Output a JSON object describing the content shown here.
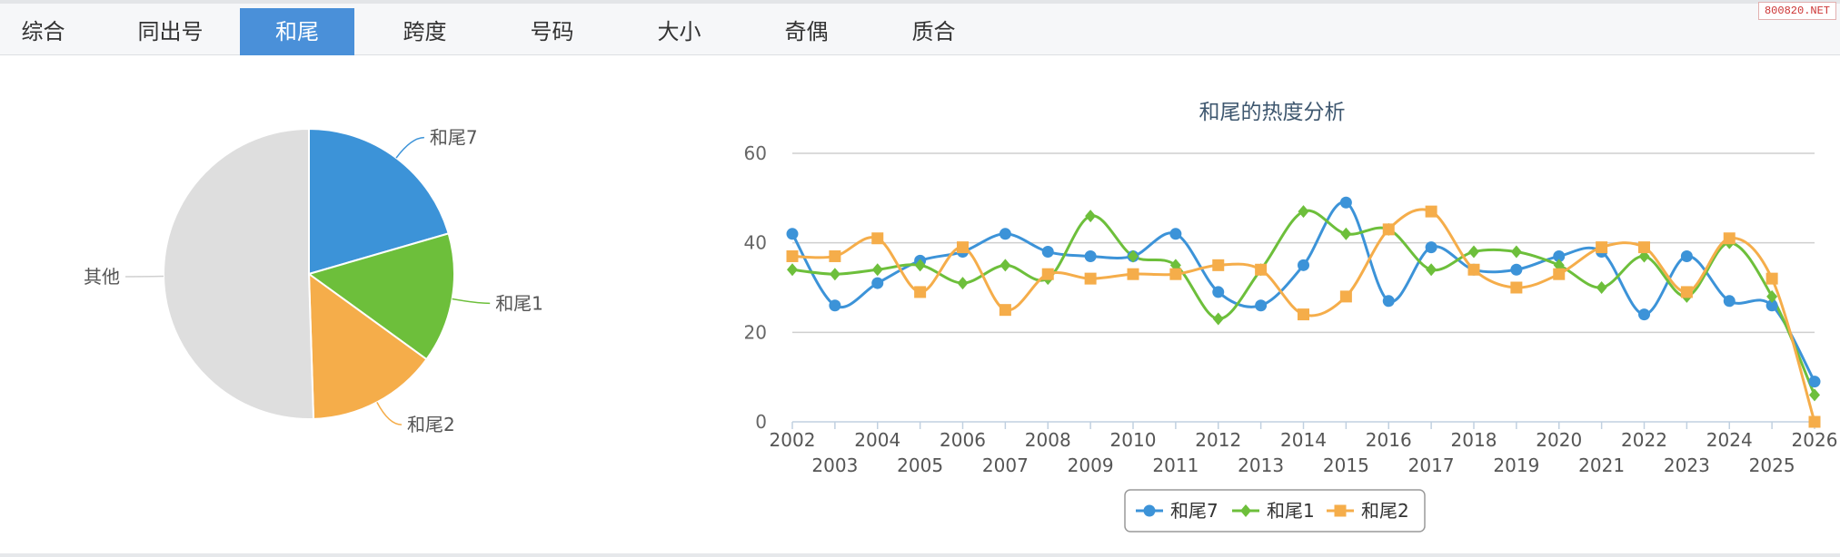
{
  "tabs": [
    {
      "label": "综合",
      "active": false
    },
    {
      "label": "同出号",
      "active": false
    },
    {
      "label": "和尾",
      "active": true
    },
    {
      "label": "跨度",
      "active": false
    },
    {
      "label": "号码",
      "active": false
    },
    {
      "label": "大小",
      "active": false
    },
    {
      "label": "奇偶",
      "active": false
    },
    {
      "label": "质合",
      "active": false
    }
  ],
  "watermark": "800820.NET",
  "colors": {
    "accent": "#4a90d9",
    "series1": "#3c93d8",
    "series2": "#6dbf3b",
    "series3": "#f5ad4a",
    "other": "#dedede"
  },
  "chart_data": [
    {
      "type": "pie",
      "labels": [
        "和尾7",
        "和尾1",
        "和尾2",
        "其他"
      ],
      "values": [
        20.5,
        14.5,
        14.5,
        50.5
      ]
    },
    {
      "type": "line",
      "title": "和尾的热度分析",
      "x": [
        "2002",
        "2003",
        "2004",
        "2005",
        "2006",
        "2007",
        "2008",
        "2009",
        "2010",
        "2011",
        "2012",
        "2013",
        "2014",
        "2015",
        "2016",
        "2017",
        "2018",
        "2019",
        "2020",
        "2021",
        "2022",
        "2023",
        "2024",
        "2025",
        "2026"
      ],
      "ylim": [
        0,
        60
      ],
      "yticks": [
        0,
        20,
        40,
        60
      ],
      "grid": true,
      "legend": "bottom-center",
      "series": [
        {
          "name": "和尾7",
          "marker": "circle",
          "values": [
            42,
            26,
            31,
            36,
            38,
            42,
            38,
            37,
            37,
            42,
            29,
            26,
            35,
            49,
            27,
            39,
            34,
            34,
            37,
            38,
            24,
            37,
            27,
            26,
            9
          ]
        },
        {
          "name": "和尾1",
          "marker": "diamond",
          "values": [
            34,
            33,
            34,
            35,
            31,
            35,
            32,
            46,
            37,
            35,
            23,
            34,
            47,
            42,
            43,
            34,
            38,
            38,
            35,
            30,
            37,
            28,
            40,
            28,
            6
          ]
        },
        {
          "name": "和尾2",
          "marker": "square",
          "values": [
            37,
            37,
            41,
            29,
            39,
            25,
            33,
            32,
            33,
            33,
            35,
            34,
            24,
            28,
            43,
            47,
            34,
            30,
            33,
            39,
            39,
            29,
            41,
            32,
            0
          ]
        }
      ]
    }
  ]
}
